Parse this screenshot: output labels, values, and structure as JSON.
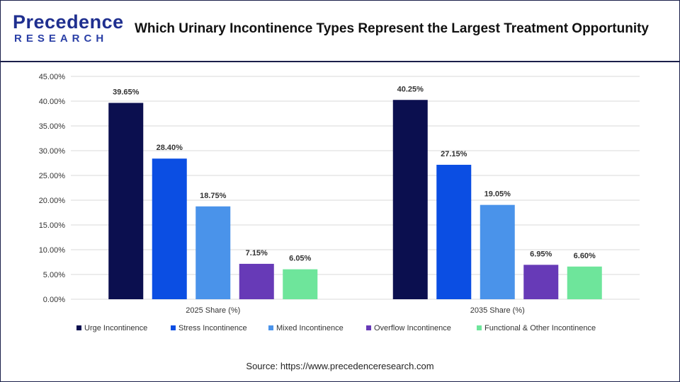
{
  "header": {
    "logo_main": "Precedence",
    "logo_sub": "RESEARCH",
    "title": "Which Urinary Incontinence Types Represent the Largest Treatment Opportunity"
  },
  "source": "Source: https://www.precedenceresearch.com",
  "chart_data": {
    "type": "bar",
    "categories": [
      "2025 Share (%)",
      "2035 Share (%)"
    ],
    "series": [
      {
        "name": "Urge Incontinence",
        "color": "#0b0f4f",
        "values": [
          39.65,
          40.25
        ],
        "labels": [
          "39.65%",
          "40.25%"
        ]
      },
      {
        "name": "Stress Incontinence",
        "color": "#0b4ee3",
        "values": [
          28.4,
          27.15
        ],
        "labels": [
          "28.40%",
          "27.15%"
        ]
      },
      {
        "name": "Mixed Incontinence",
        "color": "#4a93ea",
        "values": [
          18.75,
          19.05
        ],
        "labels": [
          "18.75%",
          "19.05%"
        ]
      },
      {
        "name": "Overflow Incontinence",
        "color": "#673ab7",
        "values": [
          7.15,
          6.95
        ],
        "labels": [
          "7.15%",
          "6.95%"
        ]
      },
      {
        "name": "Functional & Other Incontinence",
        "color": "#6ee59b",
        "values": [
          6.05,
          6.6
        ],
        "labels": [
          "6.05%",
          "6.60%"
        ]
      }
    ],
    "ylim": [
      0,
      45
    ],
    "yticks": [
      "0.00%",
      "5.00%",
      "10.00%",
      "15.00%",
      "20.00%",
      "25.00%",
      "30.00%",
      "35.00%",
      "40.00%",
      "45.00%"
    ],
    "grid": true,
    "legend_position": "bottom"
  }
}
